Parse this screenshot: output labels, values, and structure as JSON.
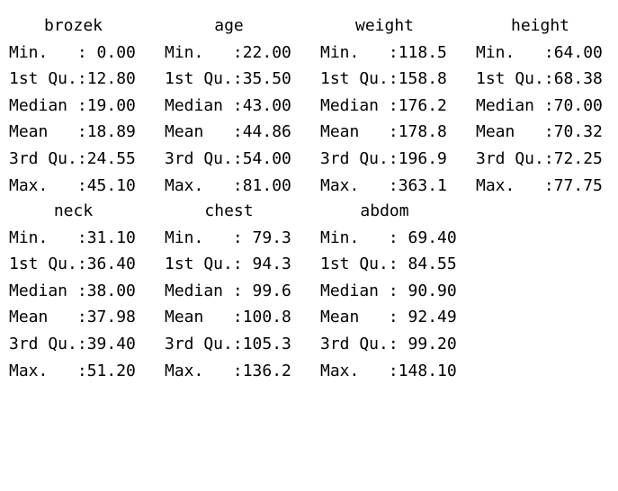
{
  "blocks": [
    {
      "columns": [
        {
          "name": "brozek",
          "stats": [
            "Min.   : 0.00",
            "1st Qu.:12.80",
            "Median :19.00",
            "Mean   :18.89",
            "3rd Qu.:24.55",
            "Max.   :45.10"
          ]
        },
        {
          "name": "age",
          "stats": [
            "Min.   :22.00",
            "1st Qu.:35.50",
            "Median :43.00",
            "Mean   :44.86",
            "3rd Qu.:54.00",
            "Max.   :81.00"
          ]
        },
        {
          "name": "weight",
          "stats": [
            "Min.   :118.5",
            "1st Qu.:158.8",
            "Median :176.2",
            "Mean   :178.8",
            "3rd Qu.:196.9",
            "Max.   :363.1"
          ]
        },
        {
          "name": "height",
          "stats": [
            "Min.   :64.00",
            "1st Qu.:68.38",
            "Median :70.00",
            "Mean   :70.32",
            "3rd Qu.:72.25",
            "Max.   :77.75"
          ]
        }
      ]
    },
    {
      "columns": [
        {
          "name": "neck",
          "stats": [
            "Min.   :31.10",
            "1st Qu.:36.40",
            "Median :38.00",
            "Mean   :37.98",
            "3rd Qu.:39.40",
            "Max.   :51.20"
          ]
        },
        {
          "name": "chest",
          "stats": [
            "Min.   : 79.3",
            "1st Qu.: 94.3",
            "Median : 99.6",
            "Mean   :100.8",
            "3rd Qu.:105.3",
            "Max.   :136.2"
          ]
        },
        {
          "name": "abdom",
          "stats": [
            "Min.   : 69.40",
            "1st Qu.: 84.55",
            "Median : 90.90",
            "Mean   : 92.49",
            "3rd Qu.: 99.20",
            "Max.   :148.10"
          ]
        }
      ]
    }
  ]
}
